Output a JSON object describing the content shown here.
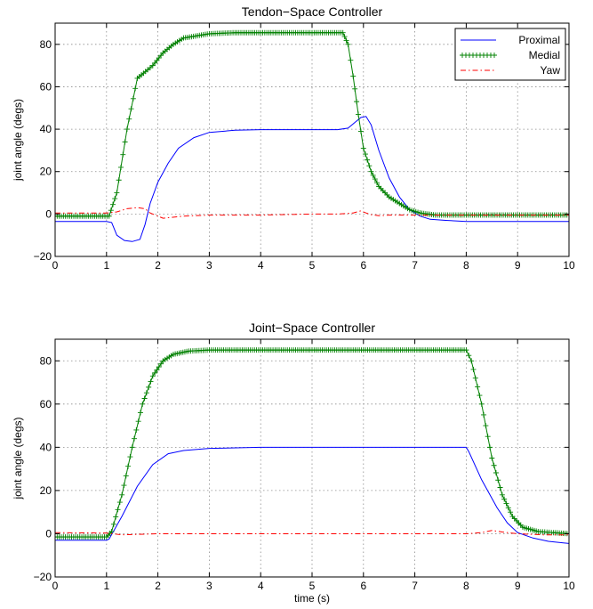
{
  "chart_data": [
    {
      "type": "line",
      "title": "Tendon−Space Controller",
      "xlabel": "",
      "ylabel": "joint angle (degs)",
      "xlim": [
        0,
        10
      ],
      "ylim": [
        -20,
        90
      ],
      "xticks": [
        "0",
        "1",
        "2",
        "3",
        "4",
        "5",
        "6",
        "7",
        "8",
        "9",
        "10"
      ],
      "yticks": [
        "−20",
        "0",
        "20",
        "40",
        "60",
        "80"
      ],
      "grid": true,
      "legend": {
        "position": "top-right",
        "entries": [
          "Proximal",
          "Medial",
          "Yaw"
        ]
      },
      "series": [
        {
          "name": "Proximal",
          "color": "#0000ff",
          "style": "solid",
          "marker": "none",
          "x": [
            0,
            1.0,
            1.1,
            1.2,
            1.35,
            1.5,
            1.65,
            1.75,
            1.85,
            2.0,
            2.2,
            2.4,
            2.7,
            3.0,
            3.5,
            4,
            5,
            5.5,
            5.7,
            5.85,
            5.95,
            6.05,
            6.15,
            6.3,
            6.5,
            6.7,
            6.9,
            7.1,
            7.3,
            7.6,
            8,
            9,
            10
          ],
          "y": [
            -3.5,
            -3.5,
            -4,
            -10,
            -12.5,
            -13,
            -12,
            -5,
            5,
            15,
            24,
            31,
            36,
            38.5,
            39.5,
            39.8,
            39.8,
            39.8,
            40.5,
            43.5,
            45.5,
            46,
            42,
            30,
            17,
            8,
            2,
            -1,
            -2.5,
            -3,
            -3.5,
            -3.5,
            -3.5
          ]
        },
        {
          "name": "Medial",
          "color": "#008000",
          "style": "solid",
          "marker": "+",
          "x": [
            0,
            1.05,
            1.2,
            1.4,
            1.6,
            1.8,
            1.9,
            2.1,
            2.3,
            2.5,
            3.0,
            3.5,
            4,
            5,
            5.6,
            5.7,
            5.8,
            5.9,
            6.0,
            6.15,
            6.3,
            6.5,
            6.7,
            6.9,
            7.1,
            7.4,
            7.8,
            8,
            9,
            10
          ],
          "y": [
            -1,
            -1,
            10,
            40,
            64,
            68,
            70,
            76,
            80,
            83,
            85,
            85.5,
            85.5,
            85.5,
            85.5,
            80,
            65,
            47,
            31,
            20,
            13,
            8,
            5,
            2,
            0.5,
            -0.5,
            -0.5,
            -0.5,
            -0.5,
            -0.5
          ]
        },
        {
          "name": "Yaw",
          "color": "#ff0000",
          "style": "dashdot",
          "marker": "none",
          "x": [
            0,
            1.0,
            1.2,
            1.4,
            1.6,
            1.75,
            1.85,
            2.0,
            2.1,
            2.5,
            3,
            4,
            5,
            5.5,
            5.8,
            5.95,
            6.05,
            6.15,
            6.3,
            6.5,
            7,
            8,
            9,
            10
          ],
          "y": [
            0.5,
            0.5,
            1,
            2.5,
            3,
            2.5,
            0.5,
            -1,
            -2,
            -1,
            -0.5,
            -0.5,
            0,
            0,
            0.5,
            1.5,
            0.5,
            -0.3,
            -0.8,
            -0.5,
            -0.5,
            -0.5,
            -0.5,
            -0.5
          ]
        }
      ]
    },
    {
      "type": "line",
      "title": "Joint−Space Controller",
      "xlabel": "time (s)",
      "ylabel": "joint angle (degs)",
      "xlim": [
        0,
        10
      ],
      "ylim": [
        -20,
        90
      ],
      "xticks": [
        "0",
        "1",
        "2",
        "3",
        "4",
        "5",
        "6",
        "7",
        "8",
        "9",
        "10"
      ],
      "yticks": [
        "−20",
        "0",
        "20",
        "40",
        "60",
        "80"
      ],
      "grid": true,
      "series": [
        {
          "name": "Proximal",
          "color": "#0000ff",
          "style": "solid",
          "marker": "none",
          "x": [
            0,
            1.0,
            1.05,
            1.3,
            1.6,
            1.9,
            2.2,
            2.5,
            3,
            4,
            5,
            6,
            7,
            8,
            8.05,
            8.3,
            8.6,
            8.8,
            9.0,
            9.3,
            9.6,
            10
          ],
          "y": [
            -3,
            -3,
            -2.5,
            8,
            22,
            32,
            37,
            38.5,
            39.5,
            40,
            40,
            40,
            40,
            40,
            38,
            25,
            12,
            5,
            0.5,
            -2,
            -3.5,
            -4.5
          ]
        },
        {
          "name": "Medial",
          "color": "#008000",
          "style": "solid",
          "marker": "+",
          "x": [
            0,
            1.0,
            1.1,
            1.3,
            1.5,
            1.7,
            1.9,
            2.1,
            2.3,
            2.6,
            3,
            4,
            5,
            6,
            7,
            8.0,
            8.1,
            8.3,
            8.5,
            8.7,
            8.9,
            9.1,
            9.4,
            9.7,
            10
          ],
          "y": [
            -1.5,
            -1.5,
            1,
            18,
            40,
            60,
            73,
            80,
            83,
            84.5,
            85,
            85,
            85,
            85,
            85,
            85,
            80,
            60,
            35,
            18,
            8,
            3,
            1,
            0.5,
            0
          ]
        },
        {
          "name": "Yaw",
          "color": "#ff0000",
          "style": "dashdot",
          "marker": "none",
          "x": [
            0,
            1.0,
            1.3,
            2,
            3,
            4,
            5,
            6,
            7,
            8.0,
            8.3,
            8.5,
            8.7,
            9.0,
            9.5,
            10
          ],
          "y": [
            0.5,
            0.3,
            -0.5,
            0,
            0,
            0,
            0,
            0,
            0,
            0,
            0.5,
            1.5,
            0.8,
            0,
            -0.5,
            -0.5
          ]
        }
      ]
    }
  ]
}
